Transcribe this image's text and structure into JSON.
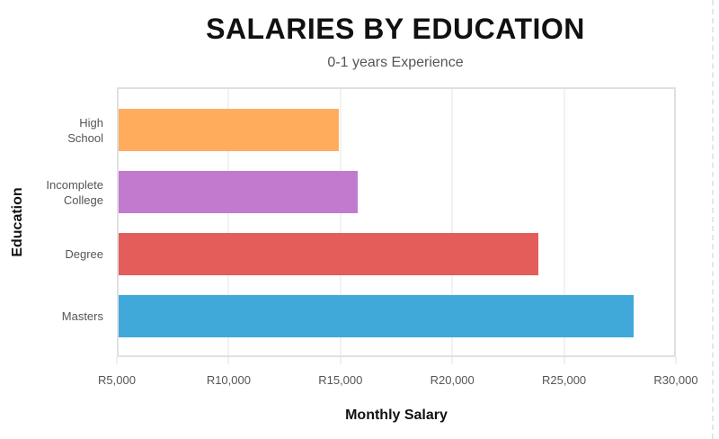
{
  "chart_data": {
    "type": "bar",
    "orientation": "horizontal",
    "title": "SALARIES BY EDUCATION",
    "subtitle": "0-1 years Experience",
    "xlabel": "Monthly Salary",
    "ylabel": "Education",
    "categories": [
      "High School",
      "Incomplete College",
      "Degree",
      "Masters"
    ],
    "category_lines": [
      [
        "High",
        "School"
      ],
      [
        "Incomplete",
        "College"
      ],
      [
        "Degree"
      ],
      [
        "Masters"
      ]
    ],
    "values": [
      14850,
      15700,
      23750,
      28050
    ],
    "colors": [
      "#FFAD5C",
      "#C27ACE",
      "#E35D5B",
      "#40A9DA"
    ],
    "xlim": [
      5000,
      30000
    ],
    "xticks": [
      5000,
      10000,
      15000,
      20000,
      25000,
      30000
    ],
    "xtick_labels": [
      "R5,000",
      "R10,000",
      "R15,000",
      "R20,000",
      "R25,000",
      "R30,000"
    ],
    "grid": true,
    "legend": null
  }
}
